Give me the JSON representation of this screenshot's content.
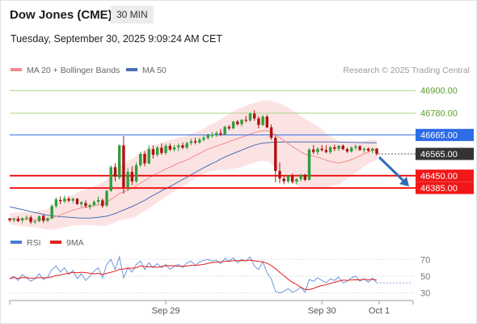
{
  "header": {
    "title": "Dow Jones (CME)",
    "timeframe": "30 MIN",
    "timestamp": "Tuesday, September 30, 2025 9:09:24 AM CET"
  },
  "legend": {
    "items": [
      {
        "label": "MA 20 + Bollinger Bands",
        "color": "#f08c8c"
      },
      {
        "label": "MA 50",
        "color": "#4a6fb3"
      }
    ],
    "credit": "Research © 2025 Trading Central"
  },
  "chart_data": [
    {
      "type": "candlestick",
      "ylim": [
        46180,
        46950
      ],
      "levels": [
        {
          "value": 46900,
          "label": "46900.00",
          "style": "green-thin"
        },
        {
          "value": 46780,
          "label": "46780.00",
          "style": "green-thin"
        },
        {
          "value": 46665,
          "label": "46665.00",
          "style": "blue-box"
        },
        {
          "value": 46565,
          "label": "46565.00",
          "style": "dark-box-dotted"
        },
        {
          "value": 46450,
          "label": "46450.00",
          "style": "red-box"
        },
        {
          "value": 46385,
          "label": "46385.00",
          "style": "red-box"
        }
      ],
      "forecast_arrow": {
        "from": 46565,
        "to": 46385,
        "direction": "down"
      },
      "candles": [
        [
          46225,
          46225,
          46205,
          46215
        ],
        [
          46215,
          46230,
          46205,
          46220
        ],
        [
          46222,
          46235,
          46205,
          46210
        ],
        [
          46214,
          46230,
          46200,
          46225
        ],
        [
          46225,
          46240,
          46215,
          46230
        ],
        [
          46230,
          46240,
          46195,
          46205
        ],
        [
          46205,
          46215,
          46195,
          46210
        ],
        [
          46210,
          46240,
          46205,
          46235
        ],
        [
          46238,
          46245,
          46200,
          46212
        ],
        [
          46212,
          46230,
          46205,
          46225
        ],
        [
          46225,
          46300,
          46220,
          46290
        ],
        [
          46290,
          46335,
          46280,
          46325
        ],
        [
          46322,
          46340,
          46300,
          46315
        ],
        [
          46315,
          46345,
          46305,
          46330
        ],
        [
          46328,
          46340,
          46310,
          46318
        ],
        [
          46318,
          46335,
          46305,
          46328
        ],
        [
          46328,
          46332,
          46295,
          46300
        ],
        [
          46300,
          46315,
          46285,
          46310
        ],
        [
          46305,
          46320,
          46280,
          46290
        ],
        [
          46285,
          46302,
          46270,
          46295
        ],
        [
          46295,
          46320,
          46290,
          46312
        ],
        [
          46312,
          46340,
          46300,
          46322
        ],
        [
          46320,
          46330,
          46280,
          46290
        ],
        [
          46292,
          46375,
          46285,
          46370
        ],
        [
          46370,
          46505,
          46365,
          46495
        ],
        [
          46495,
          46515,
          46420,
          46445
        ],
        [
          46440,
          46615,
          46430,
          46610
        ],
        [
          46610,
          46660,
          46355,
          46390
        ],
        [
          46390,
          46490,
          46370,
          46470
        ],
        [
          46470,
          46500,
          46400,
          46420
        ],
        [
          46420,
          46520,
          46410,
          46505
        ],
        [
          46505,
          46575,
          46495,
          46565
        ],
        [
          46565,
          46580,
          46500,
          46515
        ],
        [
          46515,
          46610,
          46510,
          46590
        ],
        [
          46590,
          46610,
          46540,
          46560
        ],
        [
          46560,
          46605,
          46550,
          46598
        ],
        [
          46598,
          46620,
          46560,
          46570
        ],
        [
          46570,
          46618,
          46560,
          46608
        ],
        [
          46608,
          46620,
          46580,
          46588
        ],
        [
          46588,
          46612,
          46578,
          46600
        ],
        [
          46600,
          46620,
          46580,
          46610
        ],
        [
          46610,
          46625,
          46590,
          46598
        ],
        [
          46598,
          46630,
          46590,
          46622
        ],
        [
          46622,
          46645,
          46610,
          46632
        ],
        [
          46632,
          46650,
          46615,
          46625
        ],
        [
          46625,
          46650,
          46618,
          46640
        ],
        [
          46640,
          46662,
          46630,
          46650
        ],
        [
          46650,
          46672,
          46640,
          46664
        ],
        [
          46662,
          46680,
          46650,
          46665
        ],
        [
          46665,
          46685,
          46655,
          46675
        ],
        [
          46675,
          46695,
          46660,
          46668
        ],
        [
          46668,
          46715,
          46665,
          46708
        ],
        [
          46708,
          46718,
          46690,
          46700
        ],
        [
          46700,
          46740,
          46695,
          46735
        ],
        [
          46735,
          46745,
          46715,
          46722
        ],
        [
          46722,
          46750,
          46710,
          46745
        ],
        [
          46745,
          46765,
          46730,
          46742
        ],
        [
          46742,
          46785,
          46735,
          46778
        ],
        [
          46778,
          46795,
          46740,
          46752
        ],
        [
          46752,
          46765,
          46700,
          46718
        ],
        [
          46718,
          46770,
          46712,
          46762
        ],
        [
          46762,
          46772,
          46700,
          46705
        ],
        [
          46705,
          46720,
          46640,
          46650
        ],
        [
          46650,
          46660,
          46415,
          46475
        ],
        [
          46475,
          46520,
          46410,
          46435
        ],
        [
          46435,
          46450,
          46405,
          46420
        ],
        [
          46420,
          46455,
          46410,
          46448
        ],
        [
          46448,
          46462,
          46408,
          46418
        ],
        [
          46418,
          46438,
          46405,
          46432
        ],
        [
          46432,
          46460,
          46420,
          46455
        ],
        [
          46455,
          46460,
          46420,
          46428
        ],
        [
          46428,
          46595,
          46425,
          46588
        ],
        [
          46588,
          46612,
          46565,
          46575
        ],
        [
          46575,
          46600,
          46560,
          46592
        ],
        [
          46592,
          46612,
          46578,
          46585
        ],
        [
          46585,
          46610,
          46568,
          46575
        ],
        [
          46575,
          46608,
          46565,
          46600
        ],
        [
          46600,
          46615,
          46580,
          46592
        ],
        [
          46592,
          46612,
          46580,
          46608
        ],
        [
          46608,
          46615,
          46585,
          46590
        ],
        [
          46590,
          46598,
          46570,
          46578
        ],
        [
          46578,
          46605,
          46572,
          46598
        ],
        [
          46598,
          46615,
          46585,
          46605
        ],
        [
          46605,
          46612,
          46580,
          46586
        ],
        [
          46586,
          46598,
          46572,
          46592
        ],
        [
          46592,
          46600,
          46575,
          46582
        ],
        [
          46582,
          46598,
          46570,
          46593
        ],
        [
          46593,
          46596,
          46555,
          46565
        ]
      ]
    },
    {
      "type": "line",
      "series": [
        {
          "name": "RSI",
          "color": "#4a7bd0"
        },
        {
          "name": "9MA",
          "color": "#e02020"
        }
      ],
      "ylim": [
        22,
        78
      ],
      "yticks": [
        "70",
        "50",
        "30"
      ],
      "xticks": [
        "Sep 29",
        "Sep 30",
        "Oct 1"
      ],
      "rsi": [
        47,
        50,
        45,
        52,
        48,
        44,
        47,
        53,
        46,
        49,
        58,
        62,
        55,
        60,
        52,
        57,
        47,
        53,
        45,
        50,
        56,
        60,
        48,
        64,
        70,
        58,
        73,
        48,
        60,
        55,
        64,
        68,
        58,
        66,
        60,
        65,
        60,
        64,
        58,
        62,
        64,
        60,
        66,
        68,
        63,
        67,
        69,
        70,
        68,
        69,
        65,
        71,
        68,
        72,
        66,
        70,
        68,
        73,
        62,
        58,
        67,
        54,
        47,
        32,
        30,
        32,
        35,
        31,
        33,
        37,
        31,
        46,
        44,
        48,
        45,
        42,
        47,
        45,
        49,
        42,
        44,
        48,
        50,
        44,
        47,
        43,
        48,
        42
      ]
    },
    {
      "type": "line",
      "series": [
        {
          "name": "MA 20 + Bollinger Bands",
          "color": "#f08c8c"
        },
        {
          "name": "MA 50",
          "color": "#4a6fb3"
        }
      ],
      "ma20": [
        46222,
        46222,
        46221,
        46220,
        46220,
        46219,
        46218,
        46220,
        46219,
        46220,
        46226,
        46235,
        46243,
        46252,
        46260,
        46268,
        46274,
        46280,
        46283,
        46286,
        46290,
        46296,
        46300,
        46308,
        46325,
        46338,
        46357,
        46363,
        46376,
        46383,
        46396,
        46412,
        46424,
        46438,
        46451,
        46463,
        46474,
        46486,
        46495,
        46505,
        46517,
        46525,
        46533,
        46545,
        46557,
        46567,
        46579,
        46590,
        46599,
        46605,
        46615,
        46620,
        46630,
        46638,
        46646,
        46653,
        46661,
        46670,
        46677,
        46683,
        46687,
        46688,
        46679,
        46665,
        46651,
        46636,
        46620,
        46603,
        46590,
        46575,
        46563,
        46558,
        46553,
        46548,
        46540,
        46531,
        46526,
        46520,
        46517,
        46522,
        46527,
        46535,
        46545,
        46555,
        46565,
        46575,
        46583,
        46585
      ],
      "ma50": [
        46285,
        46281,
        46276,
        46271,
        46266,
        46260,
        46255,
        46251,
        46246,
        46241,
        46238,
        46236,
        46233,
        46232,
        46230,
        46229,
        46227,
        46226,
        46226,
        46226,
        46228,
        46230,
        46233,
        46236,
        46243,
        46250,
        46260,
        46268,
        46278,
        46287,
        46297,
        46309,
        46320,
        46333,
        46346,
        46358,
        46370,
        46382,
        46393,
        46405,
        46418,
        46430,
        46442,
        46455,
        46467,
        46480,
        46492,
        46503,
        46515,
        46525,
        46538,
        46548,
        46558,
        46567,
        46576,
        46585,
        46594,
        46603,
        46611,
        46617,
        46622,
        46624,
        46626,
        46627,
        46627,
        46628,
        46628,
        46628,
        46628,
        46628,
        46628,
        46628,
        46628,
        46628,
        46628,
        46628,
        46628,
        46628,
        46628,
        46627,
        46627,
        46626,
        46626,
        46625,
        46625,
        46624,
        46624,
        46623
      ],
      "bb_width": [
        30,
        32,
        34,
        36,
        38,
        40,
        42,
        46,
        50,
        56,
        62,
        66,
        70,
        74,
        78,
        82,
        86,
        90,
        94,
        98,
        104,
        110,
        116,
        122,
        130,
        136,
        142,
        148,
        152,
        156,
        160,
        162,
        162,
        160,
        158,
        154,
        150,
        146,
        142,
        138,
        134,
        130,
        126,
        124,
        122,
        120,
        120,
        122,
        124,
        128,
        134,
        140,
        146,
        152,
        156,
        158,
        158,
        158,
        158,
        158,
        160,
        162,
        166,
        172,
        180,
        186,
        190,
        192,
        192,
        190,
        186,
        180,
        172,
        164,
        154,
        144,
        134,
        124,
        114,
        104,
        96,
        88,
        80,
        74,
        68,
        62,
        58,
        54
      ]
    }
  ]
}
